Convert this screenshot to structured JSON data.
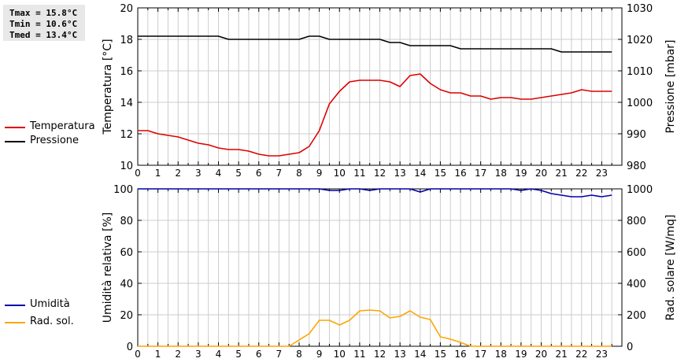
{
  "summary": {
    "tmax": "Tmax = 15.8°C",
    "tmin": "Tmin = 10.6°C",
    "tmed": "Tmed = 13.4°C"
  },
  "colors": {
    "temperature": "#dd0000",
    "pressure": "#000000",
    "humidity": "#0000aa",
    "solar": "#ffa500",
    "grid": "#cccccc"
  },
  "chart_data": [
    {
      "type": "line",
      "ylabel": "Temperatura [°C]",
      "y2label": "Pressione [mbar]",
      "ylim": [
        10,
        20
      ],
      "y2lim": [
        980,
        1030
      ],
      "yticks": [
        "10",
        "12",
        "14",
        "16",
        "18",
        "20"
      ],
      "y2ticks": [
        "980",
        "990",
        "1000",
        "1010",
        "1020",
        "1030"
      ],
      "xticks": [
        "0",
        "1",
        "2",
        "3",
        "4",
        "5",
        "6",
        "7",
        "8",
        "9",
        "10",
        "11",
        "12",
        "13",
        "14",
        "15",
        "16",
        "17",
        "18",
        "19",
        "20",
        "21",
        "22",
        "23"
      ],
      "xlim": [
        0,
        24
      ],
      "grid": true,
      "series": [
        {
          "name": "Temperatura",
          "axis": "left",
          "x": [
            0,
            0.5,
            1,
            1.5,
            2,
            2.5,
            3,
            3.5,
            4,
            4.5,
            5,
            5.5,
            6,
            6.5,
            7,
            7.5,
            8,
            8.5,
            9,
            9.5,
            10,
            10.5,
            11,
            11.5,
            12,
            12.5,
            13,
            13.5,
            14,
            14.5,
            15,
            15.5,
            16,
            16.5,
            17,
            17.5,
            18,
            18.5,
            19,
            19.5,
            20,
            20.5,
            21,
            21.5,
            22,
            22.5,
            23,
            23.5
          ],
          "y": [
            12.2,
            12.2,
            12.0,
            11.9,
            11.8,
            11.6,
            11.4,
            11.3,
            11.1,
            11.0,
            11.0,
            10.9,
            10.7,
            10.6,
            10.6,
            10.7,
            10.8,
            11.2,
            12.2,
            13.9,
            14.7,
            15.3,
            15.4,
            15.4,
            15.4,
            15.3,
            15.0,
            15.7,
            15.8,
            15.2,
            14.8,
            14.6,
            14.6,
            14.4,
            14.4,
            14.2,
            14.3,
            14.3,
            14.2,
            14.2,
            14.3,
            14.4,
            14.5,
            14.6,
            14.8,
            14.7,
            14.7,
            14.7
          ]
        },
        {
          "name": "Pressione",
          "axis": "right",
          "x": [
            0,
            0.5,
            1,
            1.5,
            2,
            2.5,
            3,
            3.5,
            4,
            4.5,
            5,
            5.5,
            6,
            6.5,
            7,
            7.5,
            8,
            8.5,
            9,
            9.5,
            10,
            10.5,
            11,
            11.5,
            12,
            12.5,
            13,
            13.5,
            14,
            14.5,
            15,
            15.5,
            16,
            16.5,
            17,
            17.5,
            18,
            18.5,
            19,
            19.5,
            20,
            20.5,
            21,
            21.5,
            22,
            22.5,
            23,
            23.5
          ],
          "y": [
            1021,
            1021,
            1021,
            1021,
            1021,
            1021,
            1021,
            1021,
            1021,
            1020,
            1020,
            1020,
            1020,
            1020,
            1020,
            1020,
            1020,
            1021,
            1021,
            1020,
            1020,
            1020,
            1020,
            1020,
            1020,
            1019,
            1019,
            1018,
            1018,
            1018,
            1018,
            1018,
            1017,
            1017,
            1017,
            1017,
            1017,
            1017,
            1017,
            1017,
            1017,
            1017,
            1016,
            1016,
            1016,
            1016,
            1016,
            1016
          ]
        }
      ]
    },
    {
      "type": "line",
      "ylabel": "Umidità relativa [%]",
      "y2label": "Rad. solare [W/mq]",
      "ylim": [
        0,
        100
      ],
      "y2lim": [
        0,
        1000
      ],
      "yticks": [
        "0",
        "20",
        "40",
        "60",
        "80",
        "100"
      ],
      "y2ticks": [
        "0",
        "200",
        "400",
        "600",
        "800",
        "1000"
      ],
      "xticks": [
        "0",
        "1",
        "2",
        "3",
        "4",
        "5",
        "6",
        "7",
        "8",
        "9",
        "10",
        "11",
        "12",
        "13",
        "14",
        "15",
        "16",
        "17",
        "18",
        "19",
        "20",
        "21",
        "22",
        "23"
      ],
      "xlim": [
        0,
        24
      ],
      "grid": true,
      "series": [
        {
          "name": "Umidità",
          "axis": "left",
          "x": [
            0,
            0.5,
            1,
            1.5,
            2,
            2.5,
            3,
            3.5,
            4,
            4.5,
            5,
            5.5,
            6,
            6.5,
            7,
            7.5,
            8,
            8.5,
            9,
            9.5,
            10,
            10.5,
            11,
            11.5,
            12,
            12.5,
            13,
            13.5,
            14,
            14.5,
            15,
            15.5,
            16,
            16.5,
            17,
            17.5,
            18,
            18.5,
            19,
            19.5,
            20,
            20.5,
            21,
            21.5,
            22,
            22.5,
            23,
            23.5
          ],
          "y": [
            100,
            100,
            100,
            100,
            100,
            100,
            100,
            100,
            100,
            100,
            100,
            100,
            100,
            100,
            100,
            100,
            100,
            100,
            100,
            99,
            99,
            100,
            100,
            99,
            100,
            100,
            100,
            100,
            98,
            100,
            100,
            100,
            100,
            100,
            100,
            100,
            100,
            100,
            99,
            100,
            99,
            97,
            96,
            95,
            95,
            96,
            95,
            96
          ]
        },
        {
          "name": "Rad. sol.",
          "axis": "right",
          "x": [
            0,
            0.5,
            1,
            1.5,
            2,
            2.5,
            3,
            3.5,
            4,
            4.5,
            5,
            5.5,
            6,
            6.5,
            7,
            7.5,
            8,
            8.5,
            9,
            9.5,
            10,
            10.5,
            11,
            11.5,
            12,
            12.5,
            13,
            13.5,
            14,
            14.5,
            15,
            15.5,
            16,
            16.5,
            17,
            17.5,
            18,
            18.5,
            19,
            19.5,
            20,
            20.5,
            21,
            21.5,
            22,
            22.5,
            23,
            23.5
          ],
          "y": [
            0,
            0,
            0,
            0,
            0,
            0,
            0,
            0,
            0,
            0,
            0,
            0,
            0,
            0,
            0,
            0,
            40,
            80,
            165,
            165,
            135,
            165,
            225,
            230,
            225,
            180,
            190,
            225,
            185,
            170,
            60,
            45,
            25,
            0,
            0,
            0,
            0,
            0,
            0,
            0,
            0,
            0,
            0,
            0,
            0,
            0,
            0,
            0
          ]
        }
      ]
    }
  ]
}
